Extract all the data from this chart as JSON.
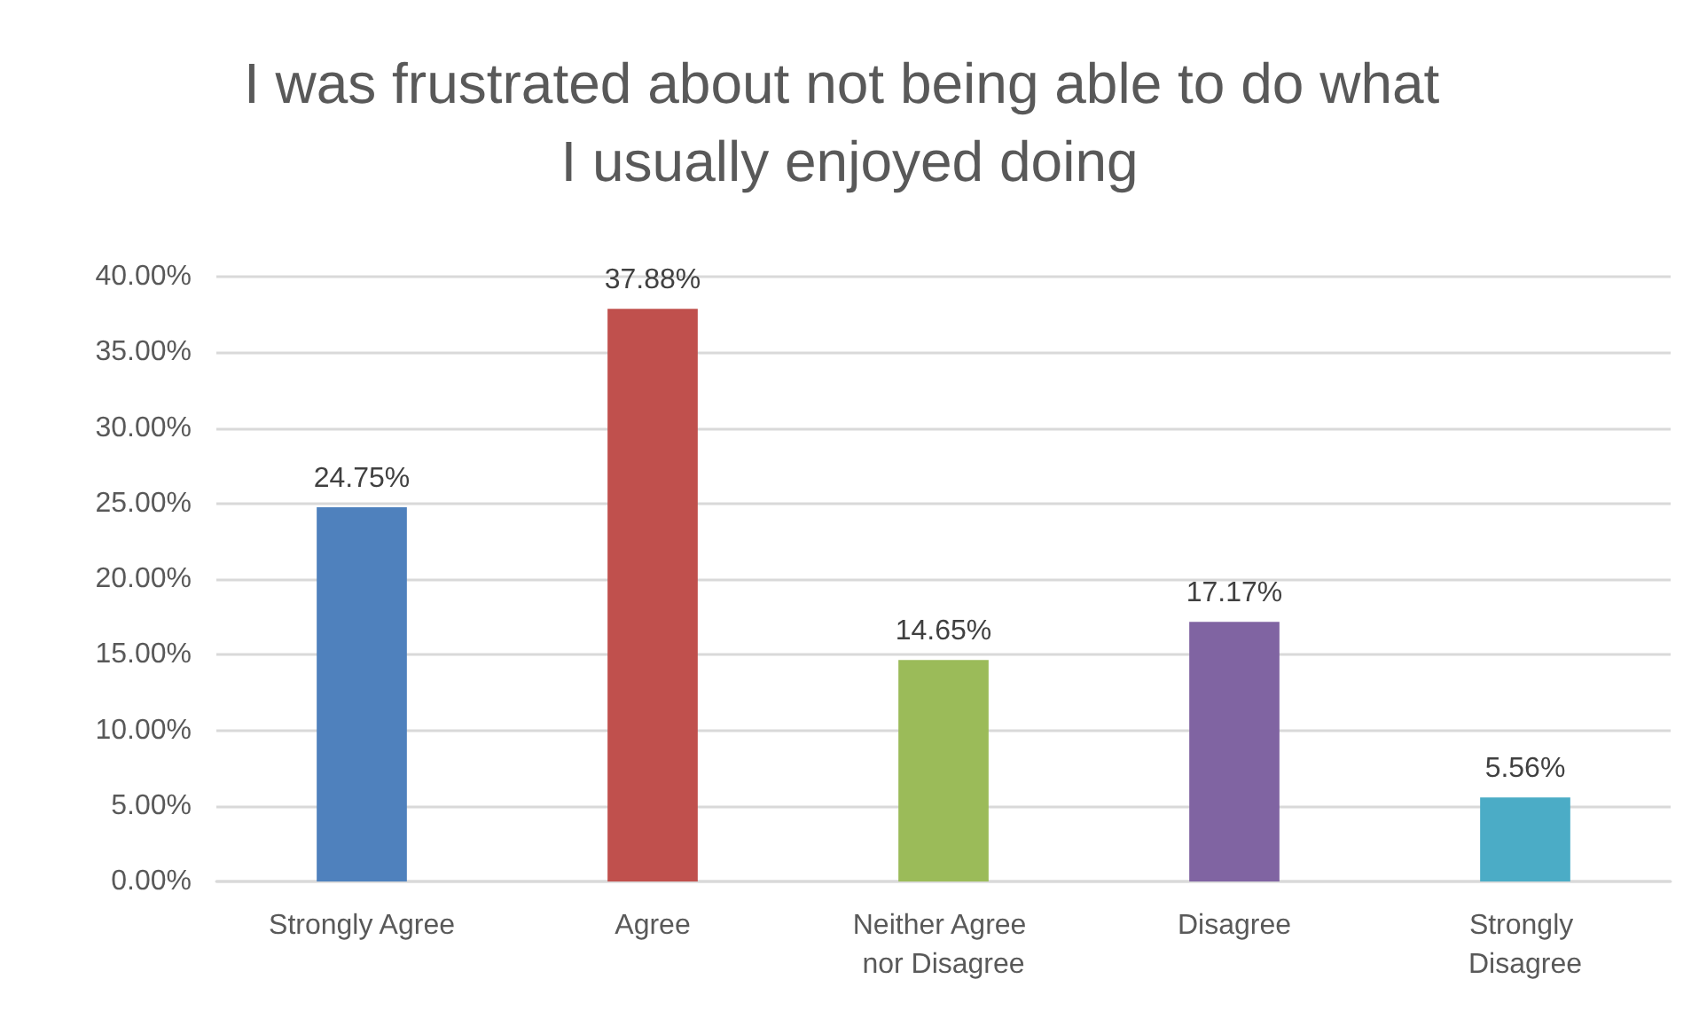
{
  "chart_data": {
    "type": "bar",
    "title": "I was frustrated about not being able to do what I usually enjoyed doing",
    "categories": [
      "Strongly Agree",
      "Agree",
      "Neither Agree nor Disagree",
      "Disagree",
      "Strongly Disagree"
    ],
    "values": [
      24.75,
      37.88,
      14.65,
      17.17,
      5.56
    ],
    "colors": [
      "#4f81bd",
      "#c0504d",
      "#9bbb59",
      "#8064a2",
      "#4bacc6"
    ],
    "value_labels": [
      "24.75%",
      "37.88%",
      "14.65%",
      "17.17%",
      "5.56%"
    ],
    "ylim": [
      0,
      40
    ],
    "yticks": [
      {
        "value": 0,
        "label": "0.00%"
      },
      {
        "value": 5,
        "label": "5.00%"
      },
      {
        "value": 10,
        "label": "10.00%"
      },
      {
        "value": 15,
        "label": "15.00%"
      },
      {
        "value": 20,
        "label": "20.00%"
      },
      {
        "value": 25,
        "label": "25.00%"
      },
      {
        "value": 30,
        "label": "30.00%"
      },
      {
        "value": 35,
        "label": "35.00%"
      },
      {
        "value": 40,
        "label": "40.00%"
      }
    ],
    "grid": "y"
  }
}
